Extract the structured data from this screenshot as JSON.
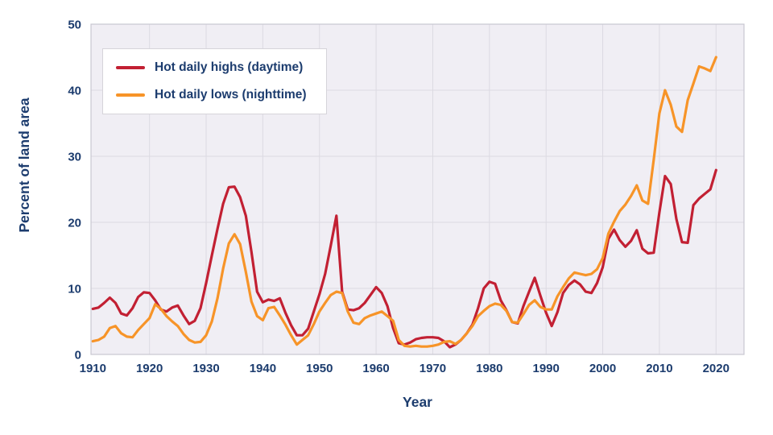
{
  "chart_data": {
    "type": "line",
    "title": "",
    "xlabel": "Year",
    "ylabel": "Percent of land area",
    "x_start": 1910,
    "x_end": 2020,
    "x_step": 1,
    "xticks": [
      1910,
      1920,
      1930,
      1940,
      1950,
      1960,
      1970,
      1980,
      1990,
      2000,
      2010,
      2020
    ],
    "yticks": [
      0,
      10,
      20,
      30,
      40,
      50
    ],
    "ylim": [
      0,
      50
    ],
    "grid": true,
    "legend_position": "top-left",
    "colors": {
      "plot_background": "#f0eef4",
      "gridline": "#dcdae2",
      "plot_border": "#c9c7d1",
      "text": "#1c3c6e",
      "legend_border": "#d6d4da",
      "page_background": "#ffffff"
    },
    "series": [
      {
        "name": "Hot daily highs (daytime)",
        "color": "#c22033",
        "values": [
          6.9,
          7.1,
          7.8,
          8.6,
          7.8,
          6.2,
          5.9,
          7.0,
          8.7,
          9.4,
          9.3,
          8.2,
          6.8,
          6.5,
          7.1,
          7.4,
          5.9,
          4.6,
          5.1,
          7.0,
          10.8,
          15.0,
          19.0,
          22.8,
          25.3,
          25.4,
          23.8,
          21.0,
          15.5,
          9.5,
          7.9,
          8.3,
          8.1,
          8.5,
          6.3,
          4.4,
          2.9,
          2.9,
          3.9,
          6.5,
          9.1,
          12.2,
          16.5,
          21.0,
          9.5,
          6.8,
          6.7,
          7.0,
          7.8,
          9.0,
          10.2,
          9.3,
          7.3,
          4.0,
          1.7,
          1.5,
          1.8,
          2.3,
          2.5,
          2.6,
          2.6,
          2.5,
          2.0,
          1.1,
          1.5,
          2.2,
          3.2,
          4.5,
          7.0,
          10.0,
          11.0,
          10.7,
          8.2,
          6.7,
          4.9,
          4.7,
          7.3,
          9.5,
          11.6,
          8.9,
          6.3,
          4.3,
          6.4,
          9.3,
          10.5,
          11.2,
          10.6,
          9.5,
          9.3,
          10.8,
          13.2,
          17.5,
          18.9,
          17.3,
          16.3,
          17.2,
          18.8,
          16.0,
          15.3,
          15.4,
          21.5,
          27.0,
          25.8,
          20.5,
          17.0,
          16.9,
          22.6,
          23.6,
          24.3,
          25.0,
          27.9
        ]
      },
      {
        "name": "Hot daily lows (nighttime)",
        "color": "#f79428",
        "values": [
          2.0,
          2.2,
          2.7,
          4.0,
          4.3,
          3.2,
          2.7,
          2.6,
          3.7,
          4.6,
          5.5,
          7.6,
          6.9,
          5.8,
          5.0,
          4.3,
          3.1,
          2.2,
          1.8,
          1.9,
          2.9,
          5.0,
          8.5,
          13.0,
          16.8,
          18.2,
          16.7,
          12.5,
          8.0,
          5.8,
          5.2,
          7.0,
          7.2,
          5.9,
          4.5,
          2.9,
          1.5,
          2.2,
          2.9,
          4.6,
          6.5,
          7.8,
          9.0,
          9.5,
          9.3,
          6.5,
          4.8,
          4.6,
          5.5,
          5.9,
          6.2,
          6.5,
          5.8,
          5.1,
          2.2,
          1.3,
          1.2,
          1.3,
          1.2,
          1.2,
          1.3,
          1.5,
          1.9,
          2.0,
          1.6,
          2.2,
          3.2,
          4.3,
          5.8,
          6.6,
          7.3,
          7.7,
          7.5,
          6.6,
          4.9,
          4.8,
          6.1,
          7.5,
          8.2,
          7.2,
          6.8,
          6.8,
          8.8,
          10.2,
          11.5,
          12.4,
          12.2,
          12.0,
          12.2,
          12.9,
          14.6,
          18.3,
          20.1,
          21.7,
          22.7,
          24.0,
          25.6,
          23.3,
          22.8,
          29.5,
          36.5,
          40.0,
          37.8,
          34.5,
          33.7,
          38.5,
          41.0,
          43.6,
          43.3,
          42.9,
          45.0
        ]
      }
    ]
  }
}
